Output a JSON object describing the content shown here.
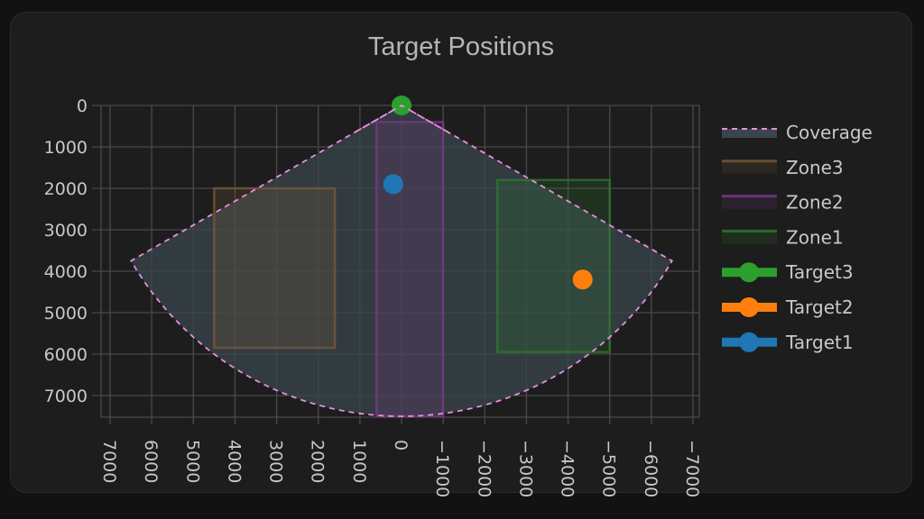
{
  "card": {
    "title": "Target Positions"
  },
  "theme": {
    "background": "#121212",
    "card": "#1d1d1d",
    "grid": "#4a4a4a",
    "text": "#c8c8c8",
    "coverage_line": "#e88fe0",
    "coverage_fill": "#3a454c",
    "zone3": "#7a5a3a",
    "zone2": "#7a3a8a",
    "zone1": "#2f7a2f",
    "target3": "#2ca02c",
    "target2": "#ff7f0e",
    "target1": "#1f77b4"
  },
  "chart_data": {
    "type": "scatter",
    "title": "Target Positions",
    "xlabel": "",
    "ylabel": "",
    "xlim": [
      7000,
      -7000
    ],
    "ylim": [
      7500,
      0
    ],
    "x_reversed": true,
    "y_reversed": true,
    "grid": true,
    "legend_position": "right",
    "x_ticks": [
      "7000",
      "6000",
      "5000",
      "4000",
      "3000",
      "2000",
      "1000",
      "0",
      "−1000",
      "−2000",
      "−3000",
      "−4000",
      "−5000",
      "−6000",
      "−7000"
    ],
    "y_ticks": [
      "0",
      "1000",
      "2000",
      "3000",
      "4000",
      "5000",
      "6000",
      "7000"
    ],
    "series": [
      {
        "name": "Coverage",
        "kind": "polygon",
        "style": "dashed",
        "description": "sector centered at origin, radius 7500, +/-60 deg",
        "points": [
          [
            0,
            0
          ],
          [
            6495,
            3750
          ],
          [
            0,
            7500
          ],
          [
            -6495,
            3750
          ]
        ]
      },
      {
        "name": "Zone3",
        "kind": "rect",
        "x": [
          4500,
          1600
        ],
        "y": [
          2000,
          5850
        ]
      },
      {
        "name": "Zone2",
        "kind": "rect",
        "x": [
          600,
          -1000
        ],
        "y": [
          400,
          7500
        ]
      },
      {
        "name": "Zone1",
        "kind": "rect",
        "x": [
          -2300,
          -5000
        ],
        "y": [
          1800,
          5950
        ]
      },
      {
        "name": "Target3",
        "kind": "marker",
        "x": 0,
        "y": 0
      },
      {
        "name": "Target2",
        "kind": "marker",
        "x": -4350,
        "y": 4200
      },
      {
        "name": "Target1",
        "kind": "marker",
        "x": 200,
        "y": 1900
      }
    ]
  },
  "legend": [
    {
      "label": "Coverage",
      "icon": "dashed-line-fill"
    },
    {
      "label": "Zone3",
      "icon": "zone-swatch"
    },
    {
      "label": "Zone2",
      "icon": "zone-swatch"
    },
    {
      "label": "Zone1",
      "icon": "zone-swatch"
    },
    {
      "label": "Target3",
      "icon": "line-marker"
    },
    {
      "label": "Target2",
      "icon": "line-marker"
    },
    {
      "label": "Target1",
      "icon": "line-marker"
    }
  ]
}
